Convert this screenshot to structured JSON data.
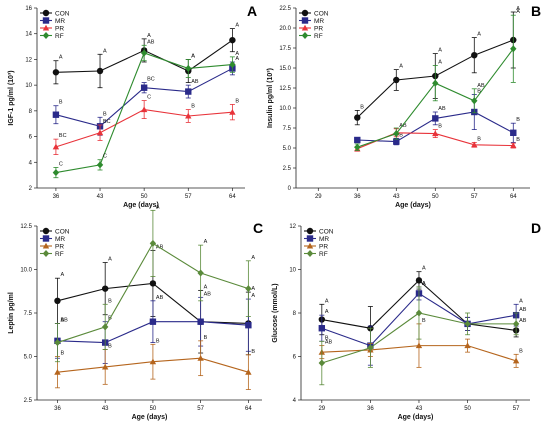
{
  "chart_data": [
    {
      "type": "line",
      "panel": "A",
      "ylabel": "IGF-1 pg/ml (10³)",
      "xlabel": "Age (days)",
      "x": [
        36,
        43,
        50,
        57,
        64
      ],
      "xlim": [
        33,
        66
      ],
      "ylim": [
        2,
        16
      ],
      "yticks": [
        "2",
        "4",
        "6",
        "8",
        "10",
        "12",
        "14",
        "16"
      ],
      "legend_position": "top-left",
      "series": [
        {
          "name": "CON",
          "color": "#111111",
          "marker": "circle",
          "values": [
            11.0,
            11.1,
            12.7,
            11.1,
            13.5
          ],
          "errors": [
            0.9,
            1.3,
            0.9,
            0.9,
            0.9
          ],
          "labels": [
            "A",
            "A",
            "A",
            "A",
            "A"
          ]
        },
        {
          "name": "MR",
          "color": "#2a2a8a",
          "marker": "square",
          "values": [
            7.7,
            6.8,
            9.8,
            9.5,
            11.3
          ],
          "errors": [
            0.7,
            0.7,
            0.4,
            0.5,
            0.5
          ],
          "labels": [
            "B",
            "B",
            "BC",
            "AB",
            "A"
          ]
        },
        {
          "name": "PR",
          "color": "#e8333a",
          "marker": "triangle",
          "values": [
            5.2,
            6.3,
            8.1,
            7.6,
            7.9
          ],
          "errors": [
            0.6,
            0.6,
            0.7,
            0.5,
            0.6
          ],
          "labels": [
            "BC",
            "BC",
            "C",
            "B",
            "B"
          ]
        },
        {
          "name": "RF",
          "color": "#2e8b2e",
          "marker": "diamond",
          "values": [
            3.2,
            3.8,
            12.5,
            11.3,
            11.6
          ],
          "errors": [
            0.4,
            0.4,
            0.6,
            0.7,
            0.6
          ],
          "labels": [
            "C",
            "C",
            "AB",
            "A",
            "A"
          ]
        }
      ]
    },
    {
      "type": "line",
      "panel": "B",
      "ylabel": "Insulin pg/ml (10³)",
      "xlabel": "Age (days)",
      "x": [
        36,
        43,
        50,
        57,
        64
      ],
      "xticks": [
        "29",
        "36",
        "43",
        "50",
        "57",
        "64"
      ],
      "xlim": [
        25,
        67
      ],
      "ylim": [
        0,
        22.5
      ],
      "yticks": [
        "0",
        "2.5",
        "5.0",
        "7.5",
        "10.0",
        "12.5",
        "15.0",
        "17.5",
        "20.0",
        "22.5"
      ],
      "legend_position": "top-left",
      "series": [
        {
          "name": "CON",
          "color": "#111111",
          "marker": "circle",
          "values": [
            8.8,
            13.5,
            14.0,
            16.6,
            18.5
          ],
          "errors": [
            0.9,
            1.3,
            2.8,
            2.2,
            3.5
          ],
          "labels": [
            "B",
            "A",
            "A",
            "A",
            "A"
          ]
        },
        {
          "name": "MR",
          "color": "#2a2a8a",
          "marker": "square",
          "values": [
            6.0,
            5.8,
            8.7,
            9.5,
            6.9
          ],
          "errors": [
            0.3,
            0.4,
            0.8,
            2.2,
            1.2
          ],
          "labels": [
            "",
            "B",
            "AB",
            "B",
            "B"
          ]
        },
        {
          "name": "PR",
          "color": "#e8333a",
          "marker": "triangle",
          "values": [
            4.9,
            6.9,
            6.8,
            5.4,
            5.3
          ],
          "errors": [
            0.3,
            0.5,
            0.5,
            0.3,
            0.3
          ],
          "labels": [
            "",
            "AB",
            "B",
            "B",
            "B"
          ]
        },
        {
          "name": "RF",
          "color": "#2e8b2e",
          "marker": "diamond",
          "values": [
            5.1,
            6.8,
            13.1,
            10.9,
            17.4
          ],
          "errors": [
            0.4,
            0.7,
            2.2,
            1.5,
            4.2
          ],
          "labels": [
            "",
            "",
            "A",
            "AB",
            "A"
          ]
        }
      ]
    },
    {
      "type": "line",
      "panel": "C",
      "ylabel": "Leptin pg/ml",
      "xlabel": "Age (days)",
      "x": [
        36,
        43,
        50,
        57,
        64
      ],
      "xlim": [
        33,
        66
      ],
      "ylim": [
        2.5,
        12.5
      ],
      "yticks": [
        "2.5",
        "5.0",
        "7.5",
        "10.0",
        "12.5"
      ],
      "legend_position": "top-left",
      "series": [
        {
          "name": "CON",
          "color": "#111111",
          "marker": "circle",
          "values": [
            8.2,
            8.9,
            9.2,
            7.0,
            6.9
          ],
          "errors": [
            1.3,
            1.5,
            1.9,
            1.8,
            1.8
          ],
          "labels": [
            "A",
            "A",
            "AB",
            "A",
            "A"
          ]
        },
        {
          "name": "MR",
          "color": "#2a2a8a",
          "marker": "square",
          "values": [
            5.9,
            5.8,
            7.0,
            7.0,
            6.8
          ],
          "errors": [
            1.0,
            1.2,
            1.2,
            1.4,
            1.5
          ],
          "labels": [
            "AB",
            "B",
            "AB",
            "AB",
            "A"
          ]
        },
        {
          "name": "PR",
          "color": "#b5651d",
          "marker": "triangle",
          "values": [
            4.1,
            4.4,
            4.7,
            4.9,
            4.1
          ],
          "errors": [
            0.9,
            1.0,
            1.0,
            1.0,
            1.0
          ],
          "labels": [
            "B",
            "B",
            "B",
            "B",
            "B"
          ]
        },
        {
          "name": "RF",
          "color": "#5a8a3a",
          "marker": "diamond",
          "values": [
            5.8,
            6.7,
            11.5,
            9.8,
            8.9
          ],
          "errors": [
            1.1,
            1.3,
            1.9,
            1.6,
            1.6
          ],
          "labels": [
            "B",
            "B",
            "A",
            "A",
            "A"
          ]
        }
      ]
    },
    {
      "type": "line",
      "panel": "D",
      "ylabel": "Glucose (mmol/L)",
      "xlabel": "Age (days)",
      "x": [
        29,
        36,
        43,
        50,
        57
      ],
      "xlim": [
        26,
        59
      ],
      "ylim": [
        4,
        12
      ],
      "yticks": [
        "4",
        "6",
        "8",
        "10",
        "12"
      ],
      "legend_position": "top-left",
      "series": [
        {
          "name": "CON",
          "color": "#111111",
          "marker": "circle",
          "values": [
            7.7,
            7.3,
            9.5,
            7.5,
            7.2
          ],
          "errors": [
            0.7,
            1.0,
            0.4,
            0.3,
            0.3
          ],
          "labels": [
            "A",
            "",
            "A",
            "",
            "AB"
          ]
        },
        {
          "name": "MR",
          "color": "#2a2a8a",
          "marker": "square",
          "values": [
            7.3,
            6.5,
            8.9,
            7.5,
            7.9
          ],
          "errors": [
            0.6,
            0.9,
            0.3,
            0.3,
            0.5
          ],
          "labels": [
            "A",
            "",
            "A",
            "",
            "A"
          ]
        },
        {
          "name": "PR",
          "color": "#b5651d",
          "marker": "triangle",
          "values": [
            6.2,
            6.3,
            6.5,
            6.5,
            5.8
          ],
          "errors": [
            0.3,
            0.3,
            1.0,
            0.3,
            0.3
          ],
          "labels": [
            "AB",
            "",
            "B",
            "",
            "B"
          ]
        },
        {
          "name": "RF",
          "color": "#5a8a3a",
          "marker": "diamond",
          "values": [
            5.7,
            6.4,
            8.0,
            7.5,
            7.5
          ],
          "errors": [
            1.0,
            0.9,
            1.2,
            0.5,
            0.5
          ],
          "labels": [
            "B",
            "",
            "A",
            "",
            "AB"
          ]
        }
      ]
    }
  ]
}
